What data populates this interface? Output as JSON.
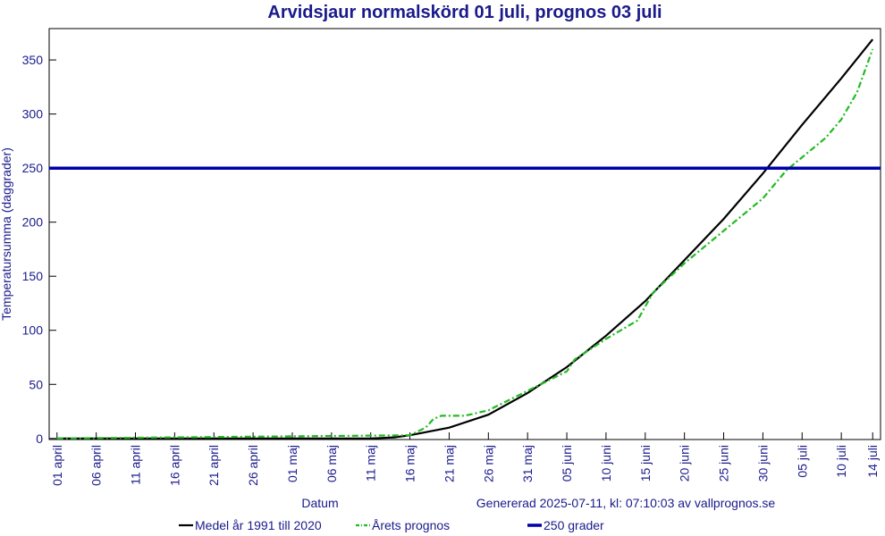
{
  "chart_data": {
    "type": "line",
    "title": "Arvidsjaur normalskörd 01 juli, prognos 03 juli",
    "x_label": "Datum",
    "y_label": "Temperatursumma (daggrader)",
    "annotation": "Genererad 2025-07-11, kl: 07:10:03 av vallprognos.se",
    "xlim": [
      -1,
      105
    ],
    "ylim": [
      -1,
      379
    ],
    "xticks": [
      {
        "value": 0,
        "label": "01 april"
      },
      {
        "value": 5,
        "label": "06 april"
      },
      {
        "value": 10,
        "label": "11 april"
      },
      {
        "value": 15,
        "label": "16 april"
      },
      {
        "value": 20,
        "label": "21 april"
      },
      {
        "value": 25,
        "label": "26 april"
      },
      {
        "value": 30,
        "label": "01 maj"
      },
      {
        "value": 35,
        "label": "06 maj"
      },
      {
        "value": 40,
        "label": "11 maj"
      },
      {
        "value": 45,
        "label": "16 maj"
      },
      {
        "value": 50,
        "label": "21 maj"
      },
      {
        "value": 55,
        "label": "26 maj"
      },
      {
        "value": 60,
        "label": "31 maj"
      },
      {
        "value": 65,
        "label": "05 juni"
      },
      {
        "value": 70,
        "label": "10 juni"
      },
      {
        "value": 75,
        "label": "15 juni"
      },
      {
        "value": 80,
        "label": "20 juni"
      },
      {
        "value": 85,
        "label": "25 juni"
      },
      {
        "value": 90,
        "label": "30 juni"
      },
      {
        "value": 95,
        "label": "05 juli"
      },
      {
        "value": 100,
        "label": "10 juli"
      },
      {
        "value": 104,
        "label": "14 juli"
      }
    ],
    "yticks": [
      0,
      50,
      100,
      150,
      200,
      250,
      300,
      350
    ],
    "grid": false,
    "series": [
      {
        "name": "Medel år 1991 till 2020",
        "color": "#000000",
        "line_style": "solid",
        "x": [
          0,
          40,
          43,
          45,
          50,
          55,
          60,
          65,
          70,
          75,
          80,
          85,
          90,
          95,
          100,
          104
        ],
        "values": [
          0,
          0,
          1,
          3,
          10,
          22,
          42,
          66,
          95,
          127,
          165,
          203,
          245,
          290,
          333,
          369
        ]
      },
      {
        "name": "Årets prognos",
        "color": "#22bb22",
        "line_style": "dashdot",
        "x": [
          0,
          45,
          47,
          48,
          49,
          52,
          55,
          60,
          65,
          66,
          70,
          74,
          75,
          76,
          80,
          85,
          90,
          93,
          95,
          98,
          100,
          102,
          104
        ],
        "values": [
          0,
          3,
          10,
          18,
          21,
          21,
          26,
          44,
          62,
          73,
          92,
          109,
          122,
          135,
          162,
          192,
          222,
          248,
          260,
          278,
          295,
          320,
          360
        ]
      },
      {
        "name": "250 grader",
        "color": "#0000aa",
        "line_style": "thick",
        "x": [
          -1,
          105
        ],
        "values": [
          250,
          250
        ]
      }
    ]
  }
}
